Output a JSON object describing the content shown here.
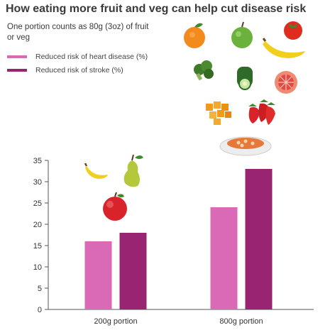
{
  "title": "How eating more fruit and veg can help cut disease risk",
  "subtitle": "One portion counts as 80g (3oz) of fruit or veg",
  "colors": {
    "heart": "#db6ab6",
    "stroke": "#992572",
    "axis": "#555555"
  },
  "icons": [
    "orange-icon",
    "apple-green-icon",
    "tomato-icon",
    "banana-icon",
    "broccoli-icon",
    "cucumber-icon",
    "grapefruit-icon",
    "mango-cubes-icon",
    "strawberries-icon",
    "bean-dish-icon",
    "banana-small-icon",
    "pear-icon",
    "apple-red-icon"
  ],
  "chart_data": {
    "type": "bar",
    "title": "How eating more fruit and veg can help cut disease risk",
    "categories": [
      "200g portion",
      "800g portion"
    ],
    "series": [
      {
        "name": "Reduced risk of heart disease (%)",
        "values": [
          16,
          24
        ]
      },
      {
        "name": "Reduced risk of stroke (%)",
        "values": [
          18,
          33
        ]
      }
    ],
    "ylim": [
      0,
      35
    ],
    "yticks": [
      0,
      5,
      10,
      15,
      20,
      25,
      30,
      35
    ],
    "xlabel": "",
    "ylabel": "",
    "grid": false,
    "legend": "top-left"
  }
}
